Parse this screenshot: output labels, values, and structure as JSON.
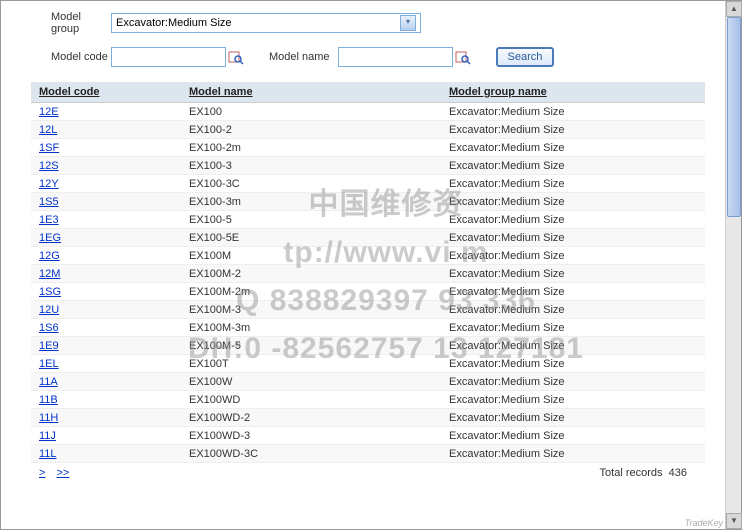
{
  "form": {
    "model_group_label": "Model group",
    "model_group_value": "Excavator:Medium Size",
    "model_code_label": "Model code",
    "model_code_value": "",
    "model_name_label": "Model name",
    "model_name_value": "",
    "search_label": "Search"
  },
  "table": {
    "headers": {
      "code": "Model code",
      "name": "Model name",
      "group": "Model group name"
    },
    "rows": [
      {
        "code": "12E",
        "name": "EX100",
        "group": "Excavator:Medium Size"
      },
      {
        "code": "12L",
        "name": "EX100-2",
        "group": "Excavator:Medium Size"
      },
      {
        "code": "1SF",
        "name": "EX100-2m",
        "group": "Excavator:Medium Size"
      },
      {
        "code": "12S",
        "name": "EX100-3",
        "group": "Excavator:Medium Size"
      },
      {
        "code": "12Y",
        "name": "EX100-3C",
        "group": "Excavator:Medium Size"
      },
      {
        "code": "1S5",
        "name": "EX100-3m",
        "group": "Excavator:Medium Size"
      },
      {
        "code": "1E3",
        "name": "EX100-5",
        "group": "Excavator:Medium Size"
      },
      {
        "code": "1EG",
        "name": "EX100-5E",
        "group": "Excavator:Medium Size"
      },
      {
        "code": "12G",
        "name": "EX100M",
        "group": "Excavator:Medium Size"
      },
      {
        "code": "12M",
        "name": "EX100M-2",
        "group": "Excavator:Medium Size"
      },
      {
        "code": "1SG",
        "name": "EX100M-2m",
        "group": "Excavator:Medium Size"
      },
      {
        "code": "12U",
        "name": "EX100M-3",
        "group": "Excavator:Medium Size"
      },
      {
        "code": "1S6",
        "name": "EX100M-3m",
        "group": "Excavator:Medium Size"
      },
      {
        "code": "1E9",
        "name": "EX100M-5",
        "group": "Excavator:Medium Size"
      },
      {
        "code": "1EL",
        "name": "EX100T",
        "group": "Excavator:Medium Size"
      },
      {
        "code": "11A",
        "name": "EX100W",
        "group": "Excavator:Medium Size"
      },
      {
        "code": "11B",
        "name": "EX100WD",
        "group": "Excavator:Medium Size"
      },
      {
        "code": "11H",
        "name": "EX100WD-2",
        "group": "Excavator:Medium Size"
      },
      {
        "code": "11J",
        "name": "EX100WD-3",
        "group": "Excavator:Medium Size"
      },
      {
        "code": "11L",
        "name": "EX100WD-3C",
        "group": "Excavator:Medium Size"
      }
    ]
  },
  "footer": {
    "pager_next": ">",
    "pager_last": ">>",
    "total_label": "Total records",
    "total_value": "436"
  },
  "watermark": {
    "line1": "中国维修资",
    "line2": "tp://www.vi           m",
    "line3": "Q  838829397 93       336",
    "line4": "DH:0   -82562757 13     127181"
  },
  "corner": "TradeKey",
  "colors": {
    "header_bg": "#dde5ee",
    "border": "#7eb0dd",
    "link": "#0033cc",
    "btn_border": "#4a7ab8"
  }
}
